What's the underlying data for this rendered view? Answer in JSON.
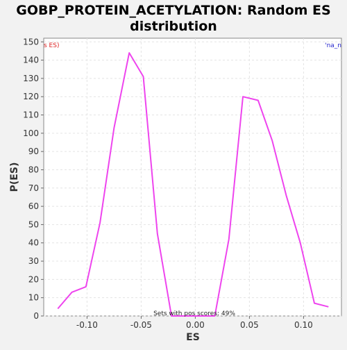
{
  "chart_data": {
    "type": "line",
    "title": "GOBP_PROTEIN_ACETYLATION: Random ES distribution",
    "title_lines": [
      "GOBP_PROTEIN_ACETYLATION: Random ES",
      "distribution"
    ],
    "xlabel": "ES",
    "ylabel": "P(ES)",
    "xlim": [
      -0.14,
      0.135
    ],
    "ylim": [
      0,
      152
    ],
    "grid": true,
    "x_ticks": [
      -0.1,
      -0.05,
      0.0,
      0.05,
      0.1
    ],
    "x_tick_labels": [
      "-0.10",
      "-0.05",
      "0.00",
      "0.05",
      "0.10"
    ],
    "y_ticks": [
      0,
      10,
      20,
      30,
      40,
      50,
      60,
      70,
      80,
      90,
      100,
      110,
      120,
      130,
      140,
      150
    ],
    "y_tick_labels": [
      "0",
      "10",
      "20",
      "30",
      "40",
      "50",
      "60",
      "70",
      "80",
      "90",
      "100",
      "110",
      "120",
      "130",
      "140",
      "150"
    ],
    "legend_left_text": "s ES)",
    "legend_right_text": "'na_n",
    "annotation": "Sets with pos scores: 49%",
    "colors": {
      "line": "#ee44ee",
      "legend_left": "#dd2222",
      "legend_right": "#2222cc",
      "plot_bg": "#ffffff",
      "page_bg": "#f2f2f2",
      "grid": "#e4e4e4"
    },
    "series": [
      {
        "x": [
          -0.127,
          -0.114,
          -0.101,
          -0.088,
          -0.075,
          -0.061,
          -0.048,
          -0.035,
          -0.022,
          -0.009,
          0.005,
          0.018,
          0.031,
          0.044,
          0.058,
          0.071,
          0.084,
          0.097,
          0.11,
          0.123
        ],
        "values": [
          4,
          13,
          16,
          51,
          103,
          144,
          131,
          45,
          0,
          0,
          0,
          0,
          42,
          120,
          118,
          96,
          66,
          40,
          7,
          5
        ]
      }
    ]
  }
}
